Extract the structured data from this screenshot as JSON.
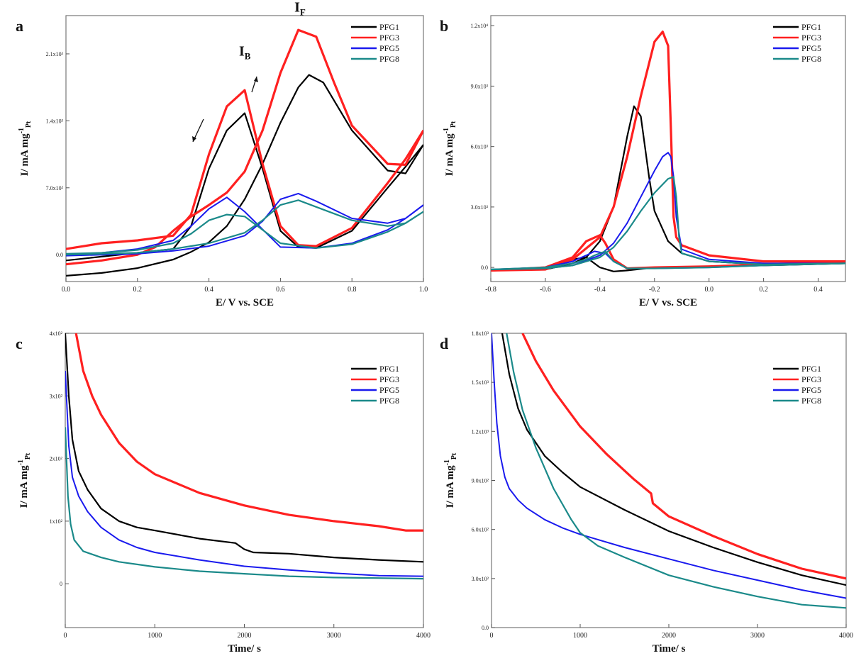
{
  "colors": {
    "PFG1": "#000000",
    "PFG3": "#ff2020",
    "PFG5": "#1a1aee",
    "PFG8": "#1b8a8a"
  },
  "chart_data": [
    {
      "panel": "a",
      "type": "line",
      "xlabel": "E/ V vs. SCE",
      "ylabel": "I/ mA mg",
      "ylabel_sup": "-1",
      "ylabel_sub": "Pt",
      "xlim": [
        0.0,
        1.0
      ],
      "ylim": [
        -280,
        2500
      ],
      "xticks": [
        0.0,
        0.2,
        0.4,
        0.6,
        0.8,
        1.0
      ],
      "xtick_labels": [
        "0.0",
        "0.2",
        "0.4",
        "0.6",
        "0.8",
        "1.0"
      ],
      "yticks": [
        0,
        700,
        1400,
        2100
      ],
      "ytick_labels": [
        "0.0",
        "7.0x10²",
        "1.4x10³",
        "2.1x10³"
      ],
      "legend": [
        "PFG1",
        "PFG3",
        "PFG5",
        "PFG8"
      ],
      "legend_position": "top-right",
      "annotations": [
        {
          "text": "I",
          "sub": "B",
          "x": 0.5,
          "y": 2080
        },
        {
          "text": "I",
          "sub": "F",
          "x": 0.655,
          "y": 2540
        }
      ],
      "series": [
        {
          "name": "PFG1",
          "forward": {
            "x": [
              0,
              0.1,
              0.2,
              0.3,
              0.35,
              0.4,
              0.45,
              0.5,
              0.55,
              0.6,
              0.65,
              0.68,
              0.72,
              0.8,
              0.9,
              0.95,
              1.0
            ],
            "y": [
              -220,
              -190,
              -140,
              -50,
              30,
              130,
              300,
              580,
              950,
              1380,
              1750,
              1880,
              1800,
              1300,
              880,
              850,
              1150
            ]
          },
          "backward": {
            "x": [
              1.0,
              0.95,
              0.9,
              0.8,
              0.7,
              0.65,
              0.6,
              0.55,
              0.5,
              0.45,
              0.4,
              0.35,
              0.3,
              0.2,
              0.1,
              0.0
            ],
            "y": [
              1150,
              920,
              700,
              250,
              70,
              80,
              250,
              900,
              1480,
              1300,
              900,
              300,
              60,
              20,
              -20,
              -60
            ]
          }
        },
        {
          "name": "PFG3",
          "forward": {
            "x": [
              0,
              0.1,
              0.2,
              0.25,
              0.3,
              0.35,
              0.4,
              0.45,
              0.5,
              0.55,
              0.6,
              0.65,
              0.7,
              0.75,
              0.8,
              0.9,
              0.95,
              1.0
            ],
            "y": [
              -100,
              -60,
              0,
              80,
              250,
              400,
              520,
              650,
              870,
              1300,
              1900,
              2350,
              2280,
              1800,
              1350,
              950,
              940,
              1300
            ]
          },
          "backward": {
            "x": [
              1.0,
              0.95,
              0.9,
              0.8,
              0.7,
              0.65,
              0.6,
              0.55,
              0.5,
              0.45,
              0.4,
              0.35,
              0.3,
              0.2,
              0.1,
              0.0
            ],
            "y": [
              1300,
              1000,
              750,
              280,
              90,
              100,
              300,
              950,
              1720,
              1550,
              1050,
              420,
              200,
              150,
              120,
              60
            ]
          }
        },
        {
          "name": "PFG5",
          "forward": {
            "x": [
              0,
              0.2,
              0.3,
              0.4,
              0.5,
              0.55,
              0.6,
              0.65,
              0.7,
              0.8,
              0.9,
              0.95,
              1.0
            ],
            "y": [
              -10,
              10,
              40,
              90,
              200,
              350,
              580,
              640,
              560,
              380,
              330,
              380,
              520
            ]
          },
          "backward": {
            "x": [
              1.0,
              0.95,
              0.9,
              0.8,
              0.7,
              0.6,
              0.5,
              0.45,
              0.4,
              0.35,
              0.3,
              0.2,
              0.1,
              0.0
            ],
            "y": [
              520,
              380,
              260,
              120,
              70,
              80,
              450,
              600,
              480,
              300,
              150,
              60,
              20,
              0
            ]
          }
        },
        {
          "name": "PFG8",
          "forward": {
            "x": [
              0,
              0.2,
              0.3,
              0.4,
              0.5,
              0.55,
              0.6,
              0.65,
              0.7,
              0.8,
              0.9,
              0.95,
              1.0
            ],
            "y": [
              0,
              20,
              60,
              120,
              230,
              360,
              520,
              570,
              500,
              360,
              300,
              330,
              450
            ]
          },
          "backward": {
            "x": [
              1.0,
              0.95,
              0.9,
              0.8,
              0.7,
              0.6,
              0.5,
              0.45,
              0.4,
              0.35,
              0.3,
              0.2,
              0.1,
              0.0
            ],
            "y": [
              450,
              330,
              240,
              110,
              70,
              120,
              400,
              420,
              360,
              220,
              120,
              50,
              20,
              10
            ]
          }
        }
      ]
    },
    {
      "panel": "b",
      "type": "line",
      "xlabel": "E/ V vs. SCE",
      "ylabel": "I/ mA mg",
      "ylabel_sup": "-1",
      "ylabel_sub": "Pt",
      "xlim": [
        -0.8,
        0.5
      ],
      "ylim": [
        -700,
        12500
      ],
      "xticks": [
        -0.8,
        -0.6,
        -0.4,
        -0.2,
        0.0,
        0.2,
        0.4
      ],
      "xtick_labels": [
        "-0.8",
        "-0.6",
        "-0.4",
        "-0.2",
        "0.0",
        "0.2",
        "0.4"
      ],
      "yticks": [
        0,
        3000,
        6000,
        9000,
        12000
      ],
      "ytick_labels": [
        "0.0",
        "3.0x10³",
        "6.0x10³",
        "9.0x10³",
        "1.2x10⁴"
      ],
      "legend": [
        "PFG1",
        "PFG3",
        "PFG5",
        "PFG8"
      ],
      "legend_position": "top-right",
      "series": [
        {
          "name": "PFG1",
          "forward": {
            "x": [
              -0.8,
              -0.6,
              -0.5,
              -0.45,
              -0.4,
              -0.35,
              -0.3,
              -0.275,
              -0.25,
              -0.22,
              -0.2,
              -0.15,
              -0.1,
              0.0,
              0.2,
              0.5
            ],
            "y": [
              -150,
              -100,
              200,
              500,
              1300,
              3000,
              6500,
              8000,
              7500,
              4500,
              2800,
              1300,
              700,
              300,
              150,
              200
            ]
          },
          "backward": {
            "x": [
              0.5,
              0.2,
              0.0,
              -0.2,
              -0.3,
              -0.35,
              -0.4,
              -0.45,
              -0.5,
              -0.6,
              -0.8
            ],
            "y": [
              200,
              100,
              50,
              0,
              -150,
              -200,
              0,
              500,
              400,
              0,
              -150
            ]
          }
        },
        {
          "name": "PFG3",
          "forward": {
            "x": [
              -0.8,
              -0.6,
              -0.5,
              -0.4,
              -0.35,
              -0.3,
              -0.25,
              -0.2,
              -0.17,
              -0.15,
              -0.14,
              -0.13,
              -0.12,
              -0.1,
              0.0,
              0.2,
              0.5
            ],
            "y": [
              -150,
              -100,
              400,
              1500,
              3000,
              5500,
              8500,
              11200,
              11700,
              11000,
              7000,
              2500,
              1500,
              1100,
              600,
              300,
              300
            ]
          },
          "backward": {
            "x": [
              0.5,
              0.2,
              0.0,
              -0.2,
              -0.3,
              -0.35,
              -0.38,
              -0.4,
              -0.45,
              -0.5,
              -0.6,
              -0.8
            ],
            "y": [
              300,
              150,
              50,
              0,
              -50,
              400,
              1200,
              1600,
              1300,
              500,
              0,
              -150
            ]
          }
        },
        {
          "name": "PFG5",
          "forward": {
            "x": [
              -0.8,
              -0.6,
              -0.5,
              -0.4,
              -0.35,
              -0.3,
              -0.25,
              -0.2,
              -0.17,
              -0.15,
              -0.14,
              -0.13,
              -0.12,
              -0.1,
              0.0,
              0.2,
              0.5
            ],
            "y": [
              -100,
              -50,
              100,
              600,
              1200,
              2200,
              3500,
              4800,
              5500,
              5700,
              5500,
              4500,
              2500,
              900,
              400,
              200,
              200
            ]
          },
          "backward": {
            "x": [
              0.5,
              0.2,
              0.0,
              -0.2,
              -0.3,
              -0.35,
              -0.38,
              -0.42,
              -0.45,
              -0.5,
              -0.6,
              -0.8
            ],
            "y": [
              200,
              100,
              0,
              -50,
              -50,
              300,
              700,
              800,
              600,
              300,
              0,
              -100
            ]
          }
        },
        {
          "name": "PFG8",
          "forward": {
            "x": [
              -0.8,
              -0.6,
              -0.5,
              -0.4,
              -0.35,
              -0.3,
              -0.25,
              -0.2,
              -0.15,
              -0.13,
              -0.12,
              -0.11,
              -0.1,
              0.0,
              0.2,
              0.5
            ],
            "y": [
              -100,
              -50,
              100,
              500,
              1000,
              1800,
              2800,
              3700,
              4400,
              4500,
              3500,
              1500,
              700,
              300,
              150,
              200
            ]
          },
          "backward": {
            "x": [
              0.5,
              0.2,
              0.0,
              -0.2,
              -0.3,
              -0.35,
              -0.38,
              -0.42,
              -0.45,
              -0.5,
              -0.6,
              -0.8
            ],
            "y": [
              200,
              100,
              0,
              -50,
              -50,
              300,
              800,
              600,
              400,
              200,
              0,
              -100
            ]
          }
        }
      ]
    },
    {
      "panel": "c",
      "type": "line",
      "xlabel": "Time/ s",
      "ylabel": "I/ mA mg",
      "ylabel_sup": "-1",
      "ylabel_sub": "Pt",
      "xlim": [
        0,
        4000
      ],
      "ylim": [
        -70,
        400
      ],
      "xticks": [
        0,
        1000,
        2000,
        3000,
        4000
      ],
      "xtick_labels": [
        "0",
        "1000",
        "2000",
        "3000",
        "4000"
      ],
      "yticks": [
        0,
        100,
        200,
        300,
        400
      ],
      "ytick_labels": [
        "0",
        "1x10²",
        "2x10²",
        "3x10²",
        "4x10²"
      ],
      "legend": [
        "PFG1",
        "PFG3",
        "PFG5",
        "PFG8"
      ],
      "legend_position": "top-right",
      "series": [
        {
          "name": "PFG1",
          "x": [
            0,
            40,
            80,
            150,
            250,
            400,
            600,
            800,
            1000,
            1500,
            1900,
            2000,
            2100,
            2500,
            3000,
            3500,
            4000
          ],
          "y": [
            400,
            300,
            230,
            180,
            150,
            120,
            100,
            90,
            85,
            72,
            65,
            55,
            50,
            48,
            42,
            38,
            35
          ]
        },
        {
          "name": "PFG3",
          "x": [
            120,
            200,
            300,
            400,
            600,
            800,
            1000,
            1500,
            2000,
            2500,
            3000,
            3500,
            3800,
            4000
          ],
          "y": [
            400,
            340,
            300,
            270,
            225,
            195,
            175,
            145,
            125,
            110,
            100,
            92,
            85,
            85
          ]
        },
        {
          "name": "PFG5",
          "x": [
            0,
            40,
            80,
            150,
            250,
            400,
            600,
            800,
            1000,
            1500,
            2000,
            2500,
            3000,
            3500,
            4000
          ],
          "y": [
            340,
            220,
            170,
            140,
            115,
            90,
            70,
            58,
            50,
            38,
            28,
            22,
            17,
            13,
            12
          ]
        },
        {
          "name": "PFG8",
          "x": [
            0,
            30,
            60,
            100,
            200,
            400,
            600,
            1000,
            1500,
            2000,
            2500,
            3000,
            3500,
            4000
          ],
          "y": [
            250,
            140,
            95,
            70,
            52,
            42,
            35,
            27,
            20,
            16,
            12,
            10,
            9,
            8
          ]
        }
      ]
    },
    {
      "panel": "d",
      "type": "line",
      "xlabel": "Time/ s",
      "ylabel": "I/ mA mg",
      "ylabel_sup": "-1",
      "ylabel_sub": "Pt",
      "xlim": [
        0,
        4000
      ],
      "ylim": [
        0,
        1800
      ],
      "xticks": [
        0,
        1000,
        2000,
        3000,
        4000
      ],
      "xtick_labels": [
        "0",
        "1000",
        "2000",
        "3000",
        "4000"
      ],
      "yticks": [
        0,
        300,
        600,
        900,
        1200,
        1500,
        1800
      ],
      "ytick_labels": [
        "0.0",
        "3.0x10²",
        "6.0x10²",
        "9.0x10²",
        "1.2x10³",
        "1.5x10³",
        "1.8x10³"
      ],
      "legend": [
        "PFG1",
        "PFG3",
        "PFG5",
        "PFG8"
      ],
      "legend_position": "top-right",
      "series": [
        {
          "name": "PFG1",
          "x": [
            120,
            200,
            300,
            400,
            600,
            800,
            1000,
            1500,
            2000,
            2500,
            3000,
            3500,
            4000
          ],
          "y": [
            1800,
            1550,
            1340,
            1210,
            1050,
            950,
            860,
            720,
            590,
            490,
            400,
            320,
            260
          ]
        },
        {
          "name": "PFG3",
          "x": [
            350,
            500,
            700,
            1000,
            1300,
            1600,
            1800,
            1820,
            2000,
            2500,
            3000,
            3500,
            4000
          ],
          "y": [
            1800,
            1630,
            1450,
            1230,
            1060,
            910,
            820,
            760,
            680,
            560,
            450,
            360,
            300
          ]
        },
        {
          "name": "PFG5",
          "x": [
            0,
            30,
            60,
            100,
            150,
            200,
            300,
            400,
            600,
            800,
            1000,
            1500,
            2000,
            2500,
            3000,
            3500,
            4000
          ],
          "y": [
            1800,
            1500,
            1250,
            1050,
            920,
            850,
            780,
            730,
            660,
            610,
            570,
            490,
            420,
            350,
            290,
            230,
            180
          ]
        },
        {
          "name": "PFG8",
          "x": [
            170,
            250,
            350,
            500,
            700,
            900,
            1000,
            1200,
            1500,
            2000,
            2500,
            3000,
            3500,
            4000
          ],
          "y": [
            1800,
            1560,
            1330,
            1100,
            850,
            660,
            580,
            500,
            430,
            320,
            250,
            190,
            140,
            120
          ]
        }
      ]
    }
  ]
}
